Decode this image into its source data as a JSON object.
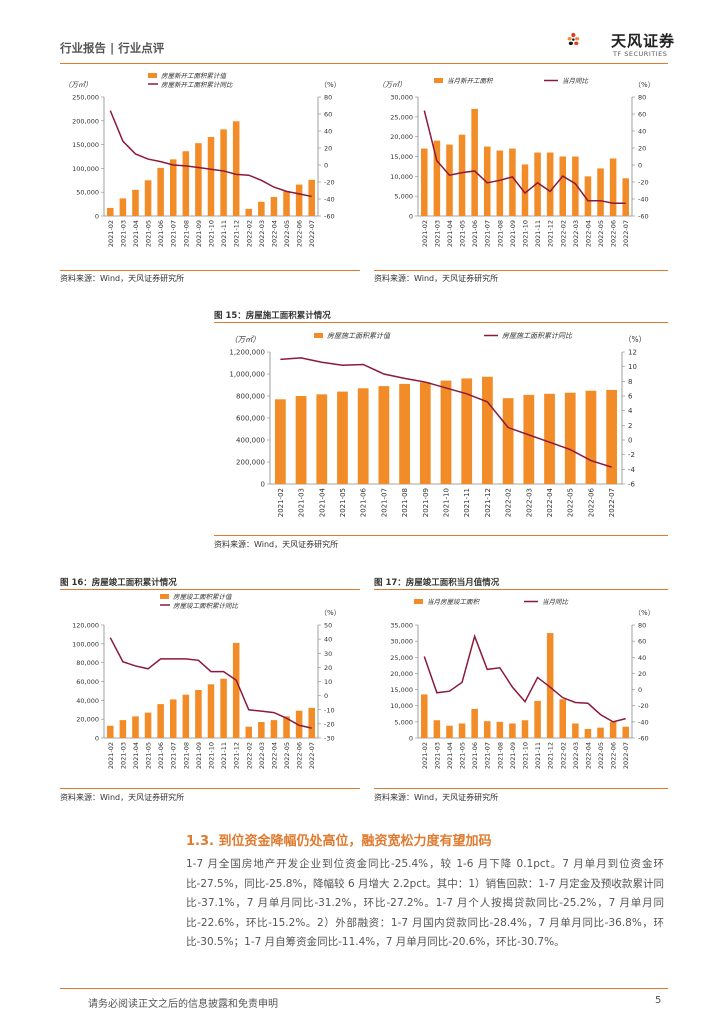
{
  "header": {
    "left_text": "行业报告 | 行业点评",
    "logo_cn": "天风证券",
    "logo_en": "TF SECURITIES"
  },
  "colors": {
    "bar": "#f28c28",
    "line": "#8b1a3a",
    "accent": "#e07a2e"
  },
  "charts": [
    {
      "id": "c1",
      "title": "",
      "source": "资料来源：Wind，天风证券研究所",
      "left_unit": "（万㎡）",
      "right_unit": "（%）",
      "legend": [
        "房屋新开工面积累计值",
        "房屋新开工面积累计同比"
      ],
      "legend_layout": "stacked"
    },
    {
      "id": "c2",
      "title": "",
      "source": "资料来源：Wind，天风证券研究所",
      "left_unit": "（万㎡）",
      "right_unit": "（%）",
      "legend": [
        "当月新开工面积",
        "当月同比"
      ],
      "legend_layout": "row"
    },
    {
      "id": "c3",
      "title": "图 15：房屋施工面积累计情况",
      "source": "资料来源：Wind，天风证券研究所",
      "left_unit": "（万㎡）",
      "right_unit": "（%）",
      "legend": [
        "房屋施工面积累计值",
        "房屋施工面积累计同比"
      ],
      "legend_layout": "row"
    },
    {
      "id": "c4",
      "title": "图 16：房屋竣工面积累计情况",
      "source": "资料来源：Wind，天风证券研究所",
      "left_unit": "",
      "right_unit": "（%）",
      "legend": [
        "房屋竣工面积累计值",
        "房屋竣工面积累计同比"
      ],
      "legend_layout": "stacked"
    },
    {
      "id": "c5",
      "title": "图 17：房屋竣工面积当月值情况",
      "source": "资料来源：Wind，天风证券研究所",
      "left_unit": "",
      "right_unit": "（%）",
      "legend": [
        "当月房屋竣工面积",
        "当月同比"
      ],
      "legend_layout": "row"
    }
  ],
  "chart_data": [
    {
      "type": "bar",
      "id": "c1",
      "categories": [
        "2021-02",
        "2021-03",
        "2021-04",
        "2021-05",
        "2021-06",
        "2021-07",
        "2021-08",
        "2021-09",
        "2021-10",
        "2021-11",
        "2021-12",
        "2022-02",
        "2022-03",
        "2022-04",
        "2022-05",
        "2022-06",
        "2022-07"
      ],
      "series": [
        {
          "name": "房屋新开工面积累计值",
          "type": "bar",
          "axis": "left",
          "values": [
            17000,
            37000,
            55000,
            75000,
            101000,
            119000,
            136000,
            153000,
            166000,
            182000,
            199000,
            15000,
            30000,
            40000,
            52000,
            66000,
            76000
          ]
        },
        {
          "name": "房屋新开工面积累计同比",
          "type": "line",
          "axis": "right",
          "values": [
            64,
            28,
            13,
            7,
            4,
            0,
            -1,
            -3,
            -5,
            -7,
            -11,
            -12,
            -18,
            -26,
            -31,
            -34,
            -37
          ]
        }
      ],
      "left_axis": {
        "min": 0,
        "max": 250000,
        "ticks": [
          "0",
          "50,000",
          "100,000",
          "150,000",
          "200,000",
          "250,000"
        ]
      },
      "right_axis": {
        "min": -60,
        "max": 80,
        "ticks": [
          "-60",
          "-40",
          "-20",
          "0",
          "20",
          "40",
          "60",
          "80"
        ]
      }
    },
    {
      "type": "bar",
      "id": "c2",
      "categories": [
        "2021-02",
        "2021-03",
        "2021-04",
        "2021-05",
        "2021-06",
        "2021-07",
        "2021-08",
        "2021-09",
        "2021-10",
        "2021-11",
        "2021-12",
        "2022-02",
        "2022-03",
        "2022-04",
        "2022-05",
        "2022-06",
        "2022-07"
      ],
      "series": [
        {
          "name": "当月新开工面积",
          "type": "bar",
          "axis": "left",
          "values": [
            17000,
            19000,
            18000,
            20500,
            27000,
            17500,
            16500,
            17000,
            13000,
            16000,
            16000,
            15000,
            15000,
            10000,
            12000,
            14500,
            9500
          ]
        },
        {
          "name": "当月同比",
          "type": "line",
          "axis": "right",
          "values": [
            64,
            5,
            -12,
            -9,
            -7,
            -21,
            -18,
            -14,
            -33,
            -21,
            -31,
            -13,
            -22,
            -42,
            -42,
            -45,
            -45
          ]
        }
      ],
      "left_axis": {
        "min": 0,
        "max": 30000,
        "ticks": [
          "0",
          "5,000",
          "10,000",
          "15,000",
          "20,000",
          "25,000",
          "30,000"
        ]
      },
      "right_axis": {
        "min": -60,
        "max": 80,
        "ticks": [
          "-60",
          "-40",
          "-20",
          "0",
          "20",
          "40",
          "60",
          "80"
        ]
      }
    },
    {
      "type": "bar",
      "id": "c3",
      "categories": [
        "2021-02",
        "2021-03",
        "2021-04",
        "2021-05",
        "2021-06",
        "2021-07",
        "2021-08",
        "2021-09",
        "2021-10",
        "2021-11",
        "2021-12",
        "2022-02",
        "2022-03",
        "2022-04",
        "2022-05",
        "2022-06",
        "2022-07"
      ],
      "series": [
        {
          "name": "房屋施工面积累计值",
          "type": "bar",
          "axis": "left",
          "values": [
            770000,
            800000,
            815000,
            840000,
            870000,
            890000,
            910000,
            925000,
            940000,
            960000,
            975000,
            780000,
            810000,
            820000,
            830000,
            848000,
            855000
          ]
        },
        {
          "name": "房屋施工面积累计同比",
          "type": "line",
          "axis": "right",
          "values": [
            11.0,
            11.2,
            10.6,
            10.2,
            10.3,
            9.0,
            8.4,
            7.9,
            7.1,
            6.3,
            5.2,
            1.7,
            0.7,
            -0.3,
            -1.3,
            -2.8,
            -3.7
          ]
        }
      ],
      "left_axis": {
        "min": 0,
        "max": 1200000,
        "ticks": [
          "0",
          "200,000",
          "400,000",
          "600,000",
          "800,000",
          "1,000,000",
          "1,200,000"
        ]
      },
      "right_axis": {
        "min": -6,
        "max": 12,
        "ticks": [
          "-6",
          "-4",
          "-2",
          "0",
          "2",
          "4",
          "6",
          "8",
          "10",
          "12"
        ]
      }
    },
    {
      "type": "bar",
      "id": "c4",
      "categories": [
        "2021-02",
        "2021-03",
        "2021-04",
        "2021-05",
        "2021-06",
        "2021-07",
        "2021-08",
        "2021-09",
        "2021-10",
        "2021-11",
        "2021-12",
        "2022-02",
        "2022-03",
        "2022-04",
        "2022-05",
        "2022-06",
        "2022-07"
      ],
      "series": [
        {
          "name": "房屋竣工面积累计值",
          "type": "bar",
          "axis": "left",
          "values": [
            13000,
            19000,
            23000,
            27000,
            36000,
            41000,
            46000,
            51000,
            57000,
            63000,
            101000,
            12000,
            17000,
            19000,
            23000,
            29000,
            32000
          ]
        },
        {
          "name": "房屋竣工面积累计同比",
          "type": "line",
          "axis": "right",
          "values": [
            41,
            24,
            21,
            19,
            26,
            26,
            26,
            25,
            17,
            17,
            11,
            -10,
            -11,
            -12,
            -16,
            -21,
            -23
          ]
        }
      ],
      "left_axis": {
        "min": 0,
        "max": 120000,
        "ticks": [
          "0",
          "20,000",
          "40,000",
          "60,000",
          "80,000",
          "100,000",
          "120,000"
        ]
      },
      "right_axis": {
        "min": -30,
        "max": 50,
        "ticks": [
          "-30",
          "-20",
          "-10",
          "0",
          "10",
          "20",
          "30",
          "40",
          "50"
        ]
      }
    },
    {
      "type": "bar",
      "id": "c5",
      "categories": [
        "2021-02",
        "2021-03",
        "2021-04",
        "2021-05",
        "2021-06",
        "2021-07",
        "2021-08",
        "2021-09",
        "2021-10",
        "2021-11",
        "2021-12",
        "2022-02",
        "2022-03",
        "2022-04",
        "2022-05",
        "2022-06",
        "2022-07"
      ],
      "series": [
        {
          "name": "当月房屋竣工面积",
          "type": "bar",
          "axis": "left",
          "values": [
            13500,
            5500,
            3800,
            4500,
            9000,
            5200,
            5000,
            4500,
            5500,
            11500,
            32500,
            12000,
            4500,
            2800,
            3200,
            5000,
            3500
          ]
        },
        {
          "name": "当月同比",
          "type": "line",
          "axis": "right",
          "values": [
            41,
            -4,
            -2,
            9,
            66,
            25,
            27,
            3,
            -15,
            15,
            3,
            -10,
            -16,
            -17,
            -31,
            -40,
            -36
          ]
        }
      ],
      "left_axis": {
        "min": 0,
        "max": 35000,
        "ticks": [
          "0",
          "5,000",
          "10,000",
          "15,000",
          "20,000",
          "25,000",
          "30,000",
          "35,000"
        ]
      },
      "right_axis": {
        "min": -60,
        "max": 80,
        "ticks": [
          "-60",
          "-40",
          "-20",
          "0",
          "20",
          "40",
          "60",
          "80"
        ]
      }
    }
  ],
  "section": {
    "title": "1.3. 到位资金降幅仍处高位，融资宽松力度有望加码",
    "paragraph": "1-7 月全国房地产开发企业到位资金同比-25.4%，较 1-6 月下降 0.1pct。7 月单月到位资金环比-27.5%，同比-25.8%，降幅较 6 月增大 2.2pct。其中：1）销售回款：1-7 月定金及预收款累计同比-37.1%，7 月单月同比-31.2%，环比-27.2%。1-7 月个人按揭贷款同比-25.2%，7 月单月同比-22.6%，环比-15.2%。2）外部融资：1-7 月国内贷款同比-28.4%，7 月单月同比-36.8%，环比-30.5%；1-7 月自筹资金同比-11.4%，7 月单月同比-20.6%，环比-30.7%。"
  },
  "footer": {
    "disclaimer": "请务必阅读正文之后的信息披露和免责申明",
    "page_number": "5"
  }
}
